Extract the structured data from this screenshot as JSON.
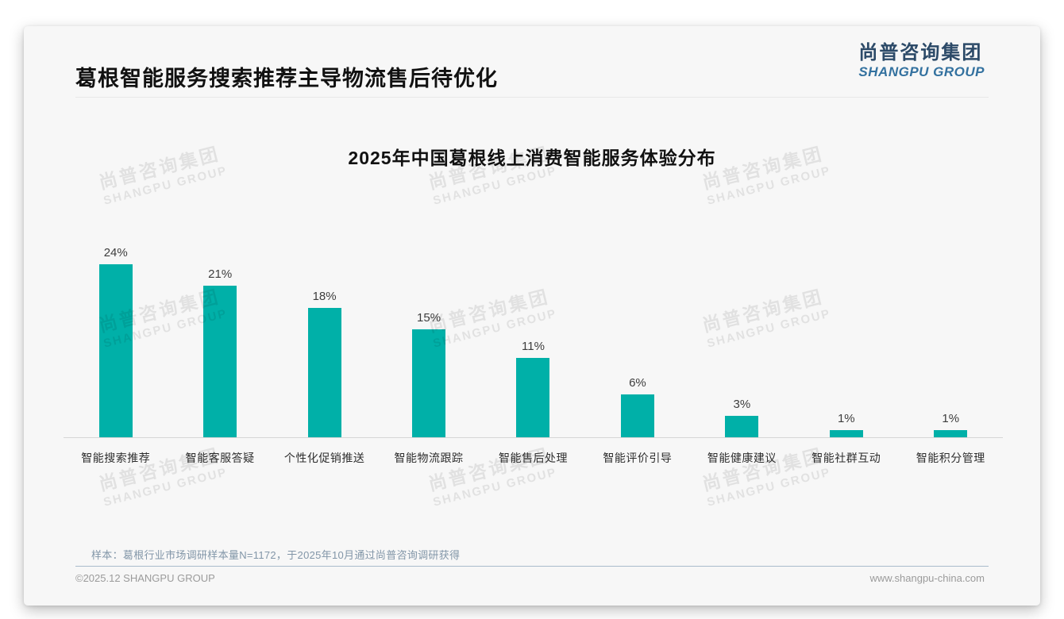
{
  "header": {
    "title": "葛根智能服务搜索推荐主导物流售后待优化",
    "logo": {
      "cn": "尚普咨询集团",
      "en": "SHANGPU GROUP"
    }
  },
  "chart_data": {
    "type": "bar",
    "title": "2025年中国葛根线上消费智能服务体验分布",
    "categories": [
      "智能搜索推荐",
      "智能客服答疑",
      "个性化促销推送",
      "智能物流跟踪",
      "智能售后处理",
      "智能评价引导",
      "智能健康建议",
      "智能社群互动",
      "智能积分管理"
    ],
    "values": [
      24,
      21,
      18,
      15,
      11,
      6,
      3,
      1,
      1
    ],
    "value_labels": [
      "24%",
      "21%",
      "18%",
      "15%",
      "11%",
      "6%",
      "3%",
      "1%",
      "1%"
    ],
    "unit": "%",
    "bar_color": "#00b0a8",
    "ylim": [
      0,
      26
    ],
    "grid": false,
    "legend": false,
    "data_labels_position": "above bars"
  },
  "watermark": {
    "cn": "尚普咨询集团",
    "en": "SHANGPU GROUP"
  },
  "footnote": "样本：葛根行业市场调研样本量N=1172，于2025年10月通过尚普咨询调研获得",
  "footer": {
    "copyright": "©2025.12 SHANGPU GROUP",
    "website": "www.shangpu-china.com"
  },
  "colors": {
    "bar": "#00b0a8",
    "logo_cn": "#2c4a68",
    "logo_en": "#33719f",
    "footnote": "#8296a8",
    "card_background": "#f7f7f7"
  }
}
